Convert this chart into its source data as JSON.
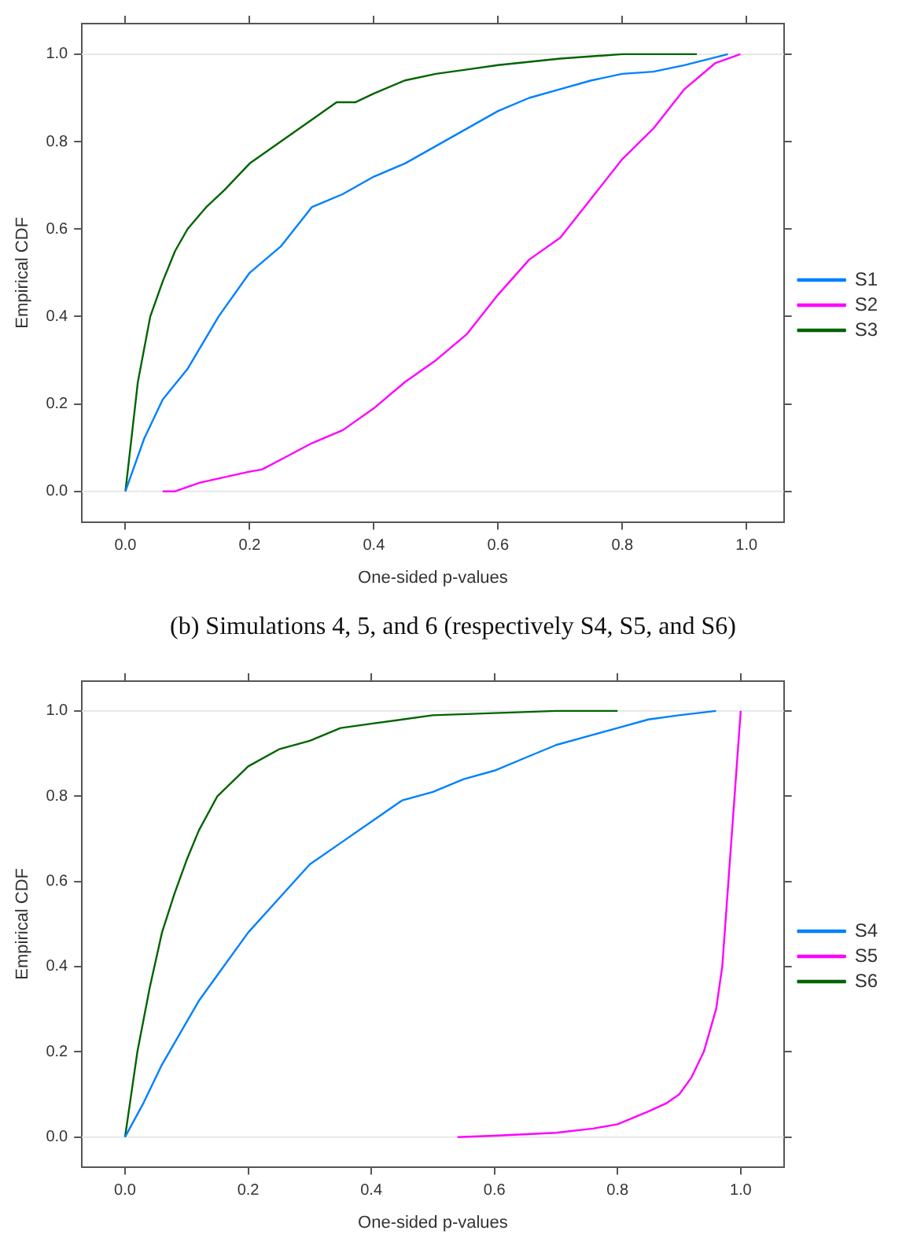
{
  "chart_data": [
    {
      "type": "line",
      "xlabel": "One-sided p-values",
      "ylabel": "Empirical CDF",
      "xlim": [
        -0.07,
        1.06
      ],
      "ylim": [
        -0.07,
        1.07
      ],
      "xticks": [
        {
          "value": 0,
          "label": "0.0"
        },
        {
          "value": 0.2,
          "label": "0.2"
        },
        {
          "value": 0.4,
          "label": "0.4"
        },
        {
          "value": 0.6,
          "label": "0.6"
        },
        {
          "value": 0.8,
          "label": "0.8"
        },
        {
          "value": 1,
          "label": "1.0"
        }
      ],
      "yticks": [
        {
          "value": 0,
          "label": "0.0"
        },
        {
          "value": 0.2,
          "label": "0.2"
        },
        {
          "value": 0.4,
          "label": "0.4"
        },
        {
          "value": 0.6,
          "label": "0.6"
        },
        {
          "value": 0.8,
          "label": "0.8"
        },
        {
          "value": 1,
          "label": "1.0"
        }
      ],
      "grid": false,
      "legend": "right",
      "ref_lines": [
        {
          "axis": "y",
          "value": 0,
          "color": "#e8e8e8"
        },
        {
          "axis": "y",
          "value": 1,
          "color": "#e8e8e8"
        }
      ],
      "series": [
        {
          "name": "S1",
          "color": "#0080ff",
          "x": [
            0,
            0.03,
            0.06,
            0.1,
            0.15,
            0.2,
            0.25,
            0.3,
            0.35,
            0.4,
            0.45,
            0.5,
            0.55,
            0.6,
            0.65,
            0.7,
            0.75,
            0.8,
            0.85,
            0.9,
            0.97
          ],
          "values": [
            0,
            0.12,
            0.21,
            0.28,
            0.4,
            0.5,
            0.56,
            0.65,
            0.68,
            0.72,
            0.75,
            0.79,
            0.83,
            0.87,
            0.9,
            0.92,
            0.94,
            0.955,
            0.96,
            0.975,
            1
          ]
        },
        {
          "name": "S2",
          "color": "#ff00ff",
          "x": [
            0.06,
            0.08,
            0.12,
            0.2,
            0.22,
            0.26,
            0.3,
            0.35,
            0.4,
            0.45,
            0.5,
            0.55,
            0.6,
            0.65,
            0.7,
            0.75,
            0.8,
            0.85,
            0.9,
            0.95,
            0.99
          ],
          "values": [
            0,
            0,
            0.02,
            0.045,
            0.05,
            0.08,
            0.11,
            0.14,
            0.19,
            0.25,
            0.3,
            0.36,
            0.45,
            0.53,
            0.58,
            0.67,
            0.76,
            0.83,
            0.92,
            0.98,
            1
          ]
        },
        {
          "name": "S3",
          "color": "#006400",
          "x": [
            0,
            0.02,
            0.04,
            0.06,
            0.08,
            0.1,
            0.13,
            0.16,
            0.2,
            0.25,
            0.3,
            0.34,
            0.37,
            0.4,
            0.45,
            0.5,
            0.55,
            0.6,
            0.7,
            0.8,
            0.92
          ],
          "values": [
            0,
            0.25,
            0.4,
            0.48,
            0.55,
            0.6,
            0.65,
            0.69,
            0.75,
            0.8,
            0.85,
            0.89,
            0.89,
            0.91,
            0.94,
            0.955,
            0.965,
            0.975,
            0.99,
            1,
            1
          ]
        }
      ]
    },
    {
      "type": "line",
      "title": "(b) Simulations 4, 5, and 6 (respectively S4, S5, and S6)",
      "xlabel": "One-sided p-values",
      "ylabel": "Empirical CDF",
      "xlim": [
        -0.07,
        1.07
      ],
      "ylim": [
        -0.07,
        1.07
      ],
      "xticks": [
        {
          "value": 0,
          "label": "0.0"
        },
        {
          "value": 0.2,
          "label": "0.2"
        },
        {
          "value": 0.4,
          "label": "0.4"
        },
        {
          "value": 0.6,
          "label": "0.6"
        },
        {
          "value": 0.8,
          "label": "0.8"
        },
        {
          "value": 1,
          "label": "1.0"
        }
      ],
      "yticks": [
        {
          "value": 0,
          "label": "0.0"
        },
        {
          "value": 0.2,
          "label": "0.2"
        },
        {
          "value": 0.4,
          "label": "0.4"
        },
        {
          "value": 0.6,
          "label": "0.6"
        },
        {
          "value": 0.8,
          "label": "0.8"
        },
        {
          "value": 1,
          "label": "1.0"
        }
      ],
      "grid": false,
      "legend": "right",
      "ref_lines": [
        {
          "axis": "y",
          "value": 0,
          "color": "#e8e8e8"
        },
        {
          "axis": "y",
          "value": 1,
          "color": "#e8e8e8"
        }
      ],
      "series": [
        {
          "name": "S4",
          "color": "#0080ff",
          "x": [
            0,
            0.03,
            0.06,
            0.1,
            0.12,
            0.15,
            0.2,
            0.25,
            0.3,
            0.35,
            0.4,
            0.45,
            0.5,
            0.55,
            0.6,
            0.65,
            0.7,
            0.75,
            0.8,
            0.85,
            0.9,
            0.96
          ],
          "values": [
            0,
            0.08,
            0.17,
            0.27,
            0.32,
            0.38,
            0.48,
            0.56,
            0.64,
            0.69,
            0.74,
            0.79,
            0.81,
            0.84,
            0.86,
            0.89,
            0.92,
            0.94,
            0.96,
            0.98,
            0.99,
            1
          ]
        },
        {
          "name": "S5",
          "color": "#ff00ff",
          "x": [
            0.54,
            0.6,
            0.7,
            0.76,
            0.8,
            0.85,
            0.88,
            0.9,
            0.92,
            0.94,
            0.96,
            0.97,
            0.98,
            0.99,
            1
          ],
          "values": [
            0,
            0.003,
            0.01,
            0.02,
            0.03,
            0.06,
            0.08,
            0.1,
            0.14,
            0.2,
            0.3,
            0.4,
            0.6,
            0.8,
            1
          ]
        },
        {
          "name": "S6",
          "color": "#006400",
          "x": [
            0,
            0.02,
            0.04,
            0.06,
            0.08,
            0.1,
            0.12,
            0.15,
            0.2,
            0.25,
            0.3,
            0.35,
            0.4,
            0.5,
            0.6,
            0.7,
            0.8
          ],
          "values": [
            0,
            0.2,
            0.35,
            0.48,
            0.57,
            0.65,
            0.72,
            0.8,
            0.87,
            0.91,
            0.93,
            0.96,
            0.97,
            0.99,
            0.995,
            1,
            1
          ]
        }
      ]
    }
  ]
}
